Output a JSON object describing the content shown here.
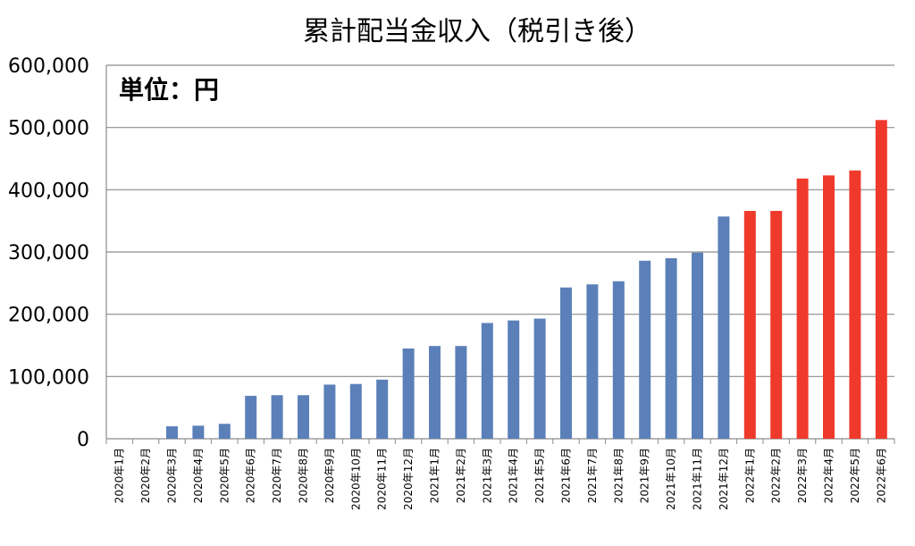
{
  "chart_data": {
    "type": "bar",
    "title": "累計配当金収入（税引き後）",
    "unit_label": "単位：円",
    "xlabel": "",
    "ylabel": "",
    "ylim": [
      0,
      600000
    ],
    "y_ticks": [
      {
        "value": 0,
        "label": "0"
      },
      {
        "value": 100000,
        "label": "100,000"
      },
      {
        "value": 200000,
        "label": "200,000"
      },
      {
        "value": 300000,
        "label": "300,000"
      },
      {
        "value": 400000,
        "label": "400,000"
      },
      {
        "value": 500000,
        "label": "500,000"
      },
      {
        "value": 600000,
        "label": "600,000"
      }
    ],
    "grid": true,
    "legend": false,
    "categories": [
      "2020年1月",
      "2020年2月",
      "2020年3月",
      "2020年4月",
      "2020年5月",
      "2020年6月",
      "2020年7月",
      "2020年8月",
      "2020年9月",
      "2020年10月",
      "2020年11月",
      "2020年12月",
      "2021年1月",
      "2021年2月",
      "2021年3月",
      "2021年4月",
      "2021年5月",
      "2021年6月",
      "2021年7月",
      "2021年8月",
      "2021年9月",
      "2021年10月",
      "2021年11月",
      "2021年12月",
      "2022年1月",
      "2022年2月",
      "2022年3月",
      "2022年4月",
      "2022年5月",
      "2022年6月"
    ],
    "values": [
      0,
      0,
      20000,
      21000,
      24000,
      69000,
      70000,
      70000,
      87000,
      88000,
      95000,
      145000,
      149000,
      149000,
      186000,
      190000,
      193000,
      243000,
      248000,
      253000,
      286000,
      290000,
      299000,
      357000,
      366000,
      366000,
      418000,
      423000,
      431000,
      512000
    ],
    "bar_colors": [
      "#5b80b9",
      "#5b80b9",
      "#5b80b9",
      "#5b80b9",
      "#5b80b9",
      "#5b80b9",
      "#5b80b9",
      "#5b80b9",
      "#5b80b9",
      "#5b80b9",
      "#5b80b9",
      "#5b80b9",
      "#5b80b9",
      "#5b80b9",
      "#5b80b9",
      "#5b80b9",
      "#5b80b9",
      "#5b80b9",
      "#5b80b9",
      "#5b80b9",
      "#5b80b9",
      "#5b80b9",
      "#5b80b9",
      "#5b80b9",
      "#ef3a2b",
      "#ef3a2b",
      "#ef3a2b",
      "#ef3a2b",
      "#ef3a2b",
      "#ef3a2b"
    ]
  },
  "colors": {
    "primary_bar": "#5b80b9",
    "highlight_bar": "#ef3a2b",
    "gridline": "#8c8c8c",
    "text": "#000000"
  }
}
